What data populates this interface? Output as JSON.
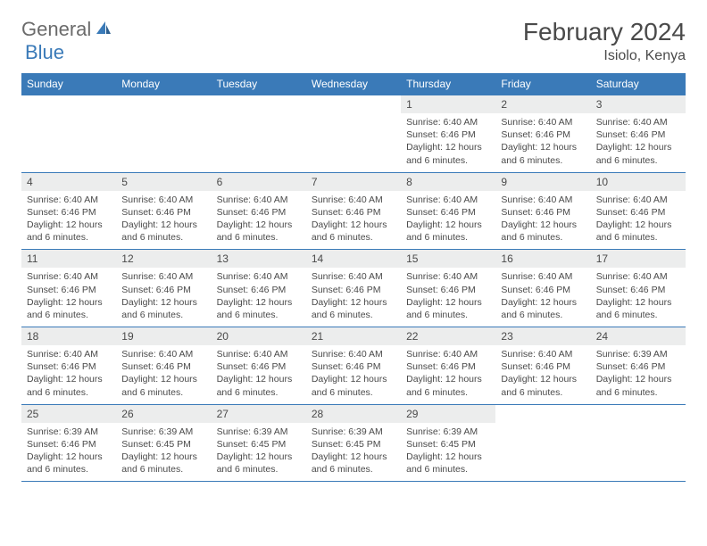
{
  "logo": {
    "part1": "General",
    "part2": "Blue"
  },
  "title": "February 2024",
  "location": "Isiolo, Kenya",
  "colors": {
    "accent": "#3a7ab8",
    "daynum_bg": "#eceded",
    "text": "#4a4a4a",
    "logo_gray": "#6b6b6b",
    "background": "#ffffff"
  },
  "weekdays": [
    "Sunday",
    "Monday",
    "Tuesday",
    "Wednesday",
    "Thursday",
    "Friday",
    "Saturday"
  ],
  "weeks": [
    [
      {
        "n": "",
        "sr": "",
        "ss": "",
        "dl": "",
        "empty": true
      },
      {
        "n": "",
        "sr": "",
        "ss": "",
        "dl": "",
        "empty": true
      },
      {
        "n": "",
        "sr": "",
        "ss": "",
        "dl": "",
        "empty": true
      },
      {
        "n": "",
        "sr": "",
        "ss": "",
        "dl": "",
        "empty": true
      },
      {
        "n": "1",
        "sr": "6:40 AM",
        "ss": "6:46 PM",
        "dl": "12 hours and 6 minutes."
      },
      {
        "n": "2",
        "sr": "6:40 AM",
        "ss": "6:46 PM",
        "dl": "12 hours and 6 minutes."
      },
      {
        "n": "3",
        "sr": "6:40 AM",
        "ss": "6:46 PM",
        "dl": "12 hours and 6 minutes."
      }
    ],
    [
      {
        "n": "4",
        "sr": "6:40 AM",
        "ss": "6:46 PM",
        "dl": "12 hours and 6 minutes."
      },
      {
        "n": "5",
        "sr": "6:40 AM",
        "ss": "6:46 PM",
        "dl": "12 hours and 6 minutes."
      },
      {
        "n": "6",
        "sr": "6:40 AM",
        "ss": "6:46 PM",
        "dl": "12 hours and 6 minutes."
      },
      {
        "n": "7",
        "sr": "6:40 AM",
        "ss": "6:46 PM",
        "dl": "12 hours and 6 minutes."
      },
      {
        "n": "8",
        "sr": "6:40 AM",
        "ss": "6:46 PM",
        "dl": "12 hours and 6 minutes."
      },
      {
        "n": "9",
        "sr": "6:40 AM",
        "ss": "6:46 PM",
        "dl": "12 hours and 6 minutes."
      },
      {
        "n": "10",
        "sr": "6:40 AM",
        "ss": "6:46 PM",
        "dl": "12 hours and 6 minutes."
      }
    ],
    [
      {
        "n": "11",
        "sr": "6:40 AM",
        "ss": "6:46 PM",
        "dl": "12 hours and 6 minutes."
      },
      {
        "n": "12",
        "sr": "6:40 AM",
        "ss": "6:46 PM",
        "dl": "12 hours and 6 minutes."
      },
      {
        "n": "13",
        "sr": "6:40 AM",
        "ss": "6:46 PM",
        "dl": "12 hours and 6 minutes."
      },
      {
        "n": "14",
        "sr": "6:40 AM",
        "ss": "6:46 PM",
        "dl": "12 hours and 6 minutes."
      },
      {
        "n": "15",
        "sr": "6:40 AM",
        "ss": "6:46 PM",
        "dl": "12 hours and 6 minutes."
      },
      {
        "n": "16",
        "sr": "6:40 AM",
        "ss": "6:46 PM",
        "dl": "12 hours and 6 minutes."
      },
      {
        "n": "17",
        "sr": "6:40 AM",
        "ss": "6:46 PM",
        "dl": "12 hours and 6 minutes."
      }
    ],
    [
      {
        "n": "18",
        "sr": "6:40 AM",
        "ss": "6:46 PM",
        "dl": "12 hours and 6 minutes."
      },
      {
        "n": "19",
        "sr": "6:40 AM",
        "ss": "6:46 PM",
        "dl": "12 hours and 6 minutes."
      },
      {
        "n": "20",
        "sr": "6:40 AM",
        "ss": "6:46 PM",
        "dl": "12 hours and 6 minutes."
      },
      {
        "n": "21",
        "sr": "6:40 AM",
        "ss": "6:46 PM",
        "dl": "12 hours and 6 minutes."
      },
      {
        "n": "22",
        "sr": "6:40 AM",
        "ss": "6:46 PM",
        "dl": "12 hours and 6 minutes."
      },
      {
        "n": "23",
        "sr": "6:40 AM",
        "ss": "6:46 PM",
        "dl": "12 hours and 6 minutes."
      },
      {
        "n": "24",
        "sr": "6:39 AM",
        "ss": "6:46 PM",
        "dl": "12 hours and 6 minutes."
      }
    ],
    [
      {
        "n": "25",
        "sr": "6:39 AM",
        "ss": "6:46 PM",
        "dl": "12 hours and 6 minutes."
      },
      {
        "n": "26",
        "sr": "6:39 AM",
        "ss": "6:45 PM",
        "dl": "12 hours and 6 minutes."
      },
      {
        "n": "27",
        "sr": "6:39 AM",
        "ss": "6:45 PM",
        "dl": "12 hours and 6 minutes."
      },
      {
        "n": "28",
        "sr": "6:39 AM",
        "ss": "6:45 PM",
        "dl": "12 hours and 6 minutes."
      },
      {
        "n": "29",
        "sr": "6:39 AM",
        "ss": "6:45 PM",
        "dl": "12 hours and 6 minutes."
      },
      {
        "n": "",
        "sr": "",
        "ss": "",
        "dl": "",
        "empty": true
      },
      {
        "n": "",
        "sr": "",
        "ss": "",
        "dl": "",
        "empty": true
      }
    ]
  ],
  "labels": {
    "sunrise": "Sunrise:",
    "sunset": "Sunset:",
    "daylight": "Daylight:"
  }
}
